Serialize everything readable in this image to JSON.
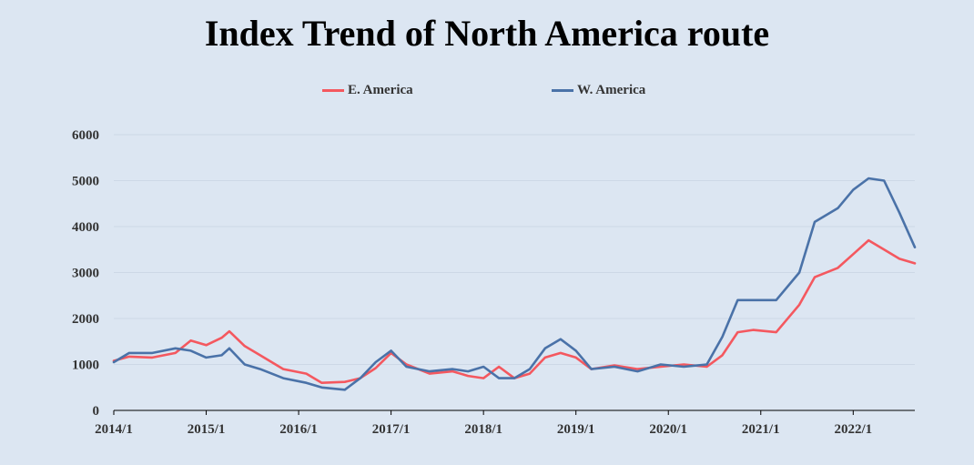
{
  "chart_data": {
    "type": "line",
    "title": "Index Trend of North America route",
    "xlabel": "",
    "ylabel": "",
    "x_tick_labels": [
      "2014/1",
      "2015/1",
      "2016/1",
      "2017/1",
      "2018/1",
      "2019/1",
      "2020/1",
      "2021/1",
      "2022/1"
    ],
    "y_tick_labels": [
      "0",
      "1000",
      "2000",
      "3000",
      "4000",
      "5000",
      "6000"
    ],
    "ylim": [
      0,
      6000
    ],
    "xlim": [
      "2014/1",
      "2022/9"
    ],
    "grid": "horizontal",
    "legend_position": "top",
    "series": [
      {
        "name": "E. America",
        "color": "#f4585f",
        "points": [
          [
            "2014/1",
            1080
          ],
          [
            "2014/3",
            1170
          ],
          [
            "2014/6",
            1150
          ],
          [
            "2014/9",
            1250
          ],
          [
            "2014/11",
            1520
          ],
          [
            "2015/1",
            1420
          ],
          [
            "2015/3",
            1580
          ],
          [
            "2015/4",
            1720
          ],
          [
            "2015/6",
            1400
          ],
          [
            "2015/8",
            1200
          ],
          [
            "2015/11",
            900
          ],
          [
            "2016/2",
            800
          ],
          [
            "2016/4",
            600
          ],
          [
            "2016/7",
            620
          ],
          [
            "2016/9",
            700
          ],
          [
            "2016/11",
            920
          ],
          [
            "2017/1",
            1250
          ],
          [
            "2017/3",
            1000
          ],
          [
            "2017/6",
            800
          ],
          [
            "2017/9",
            850
          ],
          [
            "2017/11",
            750
          ],
          [
            "2018/1",
            700
          ],
          [
            "2018/3",
            950
          ],
          [
            "2018/5",
            700
          ],
          [
            "2018/7",
            800
          ],
          [
            "2018/9",
            1150
          ],
          [
            "2018/11",
            1250
          ],
          [
            "2019/1",
            1150
          ],
          [
            "2019/3",
            900
          ],
          [
            "2019/6",
            980
          ],
          [
            "2019/9",
            900
          ],
          [
            "2019/12",
            950
          ],
          [
            "2020/3",
            1000
          ],
          [
            "2020/6",
            950
          ],
          [
            "2020/8",
            1200
          ],
          [
            "2020/10",
            1700
          ],
          [
            "2020/12",
            1750
          ],
          [
            "2021/3",
            1700
          ],
          [
            "2021/6",
            2300
          ],
          [
            "2021/8",
            2900
          ],
          [
            "2021/11",
            3100
          ],
          [
            "2022/1",
            3400
          ],
          [
            "2022/3",
            3700
          ],
          [
            "2022/5",
            3500
          ],
          [
            "2022/7",
            3300
          ],
          [
            "2022/9",
            3200
          ]
        ]
      },
      {
        "name": "W. America",
        "color": "#4a72a8",
        "points": [
          [
            "2014/1",
            1050
          ],
          [
            "2014/3",
            1250
          ],
          [
            "2014/6",
            1250
          ],
          [
            "2014/9",
            1350
          ],
          [
            "2014/11",
            1300
          ],
          [
            "2015/1",
            1150
          ],
          [
            "2015/3",
            1200
          ],
          [
            "2015/4",
            1350
          ],
          [
            "2015/6",
            1000
          ],
          [
            "2015/8",
            900
          ],
          [
            "2015/11",
            700
          ],
          [
            "2016/2",
            600
          ],
          [
            "2016/4",
            500
          ],
          [
            "2016/7",
            450
          ],
          [
            "2016/9",
            700
          ],
          [
            "2016/11",
            1050
          ],
          [
            "2017/1",
            1300
          ],
          [
            "2017/3",
            950
          ],
          [
            "2017/6",
            850
          ],
          [
            "2017/9",
            900
          ],
          [
            "2017/11",
            850
          ],
          [
            "2018/1",
            950
          ],
          [
            "2018/3",
            700
          ],
          [
            "2018/5",
            700
          ],
          [
            "2018/7",
            900
          ],
          [
            "2018/9",
            1350
          ],
          [
            "2018/11",
            1550
          ],
          [
            "2019/1",
            1300
          ],
          [
            "2019/3",
            900
          ],
          [
            "2019/6",
            950
          ],
          [
            "2019/9",
            850
          ],
          [
            "2019/12",
            1000
          ],
          [
            "2020/3",
            950
          ],
          [
            "2020/6",
            1000
          ],
          [
            "2020/8",
            1600
          ],
          [
            "2020/10",
            2400
          ],
          [
            "2020/12",
            2400
          ],
          [
            "2021/3",
            2400
          ],
          [
            "2021/6",
            3000
          ],
          [
            "2021/8",
            4100
          ],
          [
            "2021/11",
            4400
          ],
          [
            "2022/1",
            4800
          ],
          [
            "2022/3",
            5050
          ],
          [
            "2022/5",
            5000
          ],
          [
            "2022/7",
            4300
          ],
          [
            "2022/9",
            3550
          ]
        ]
      }
    ]
  }
}
